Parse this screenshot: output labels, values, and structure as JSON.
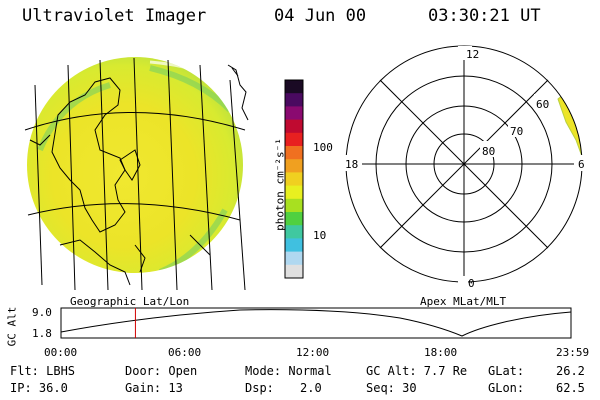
{
  "header": {
    "instrument": "Ultraviolet Imager",
    "date": "04 Jun 00",
    "time": "03:30:21 UT"
  },
  "panels": {
    "left_label": "Geographic Lat/Lon",
    "right_label": "Apex MLat/MLT"
  },
  "colorbar": {
    "unit_label": "photon cm⁻²s⁻¹",
    "tick_100": "100",
    "tick_10": "10",
    "colors": [
      "#1a0a24",
      "#4a0a60",
      "#8a0a70",
      "#c00a30",
      "#e82020",
      "#f07020",
      "#f0a020",
      "#f0d020",
      "#e8f020",
      "#a8e020",
      "#50d040",
      "#40c8a0",
      "#40c0e0",
      "#b0d8f0",
      "#e0e0e0"
    ]
  },
  "polar": {
    "mlt_labels": {
      "top": "12",
      "bottom": "0",
      "left": "18",
      "right": "6"
    },
    "mlat_labels": [
      "60",
      "70",
      "80"
    ]
  },
  "altitude_plot": {
    "ylabel": "GC Alt",
    "ytick_high": "9.0",
    "ytick_low": "1.8",
    "x_ticks": [
      "00:00",
      "06:00",
      "12:00",
      "18:00",
      "23:59"
    ],
    "current_time_marker": "03:30",
    "marker_color": "#d00000"
  },
  "status": {
    "flt": "Flt: LBHS",
    "ip": "IP: 36.0",
    "door": "Door: Open",
    "gain": "Gain: 13",
    "mode": "Mode: Normal",
    "dsp_label": "Dsp:",
    "dsp_value": "2.0",
    "gc_alt": "GC Alt: 7.7 Re",
    "seq": "Seq: 30",
    "glat_label": "GLat:",
    "glat_value": "26.2",
    "glon_label": "GLon:",
    "glon_value": "62.5"
  }
}
